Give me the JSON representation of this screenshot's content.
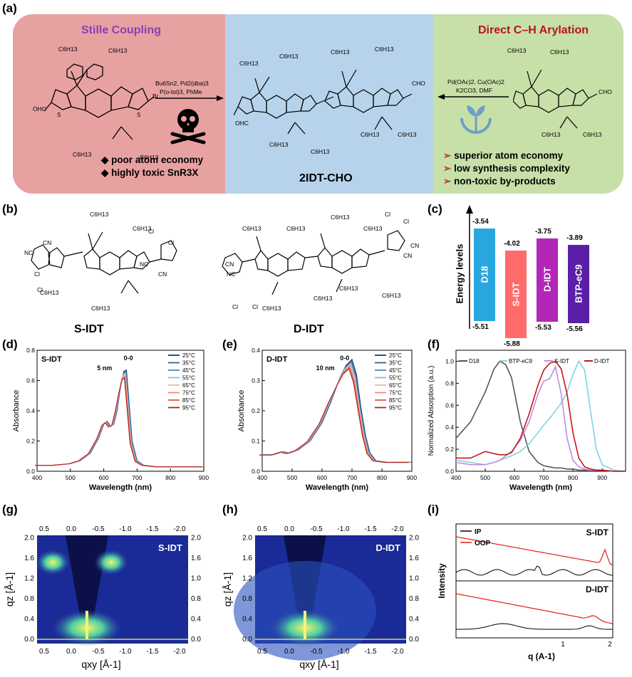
{
  "panel_labels": {
    "a": "(a)",
    "b": "(b)",
    "c": "(c)",
    "d": "(d)",
    "e": "(e)",
    "f": "(f)",
    "g": "(g)",
    "h": "(h)",
    "i": "(i)"
  },
  "scheme": {
    "left_title": "Stille Coupling",
    "left_reagents": [
      "Bu6Sn2, Pd2(dba)3",
      "P(o-tol)3, PhMe"
    ],
    "left_bullets": [
      "poor atom economy",
      "highly toxic SnR3X"
    ],
    "center_name": "2IDT-CHO",
    "right_title": "Direct C–H Arylation",
    "right_reagents": [
      "Pd(OAc)2, Cu(OAc)2",
      "K2CO3, DMF"
    ],
    "right_bullets": [
      "superior atom economy",
      "low synthesis complexity",
      "non-toxic by-products"
    ],
    "chem_labels": {
      "hexyl": "C6H13",
      "ohc": "OHC",
      "cho": "CHO",
      "br": "Br",
      "s": "S",
      "cl": "Cl",
      "nc": "NC",
      "cn": "CN",
      "o": "O"
    }
  },
  "molecules": {
    "left": "S-IDT",
    "right": "D-IDT"
  },
  "energy": {
    "ylabel": "Energy levels",
    "bars": [
      {
        "name": "D18",
        "lumo": "-3.54",
        "homo": "-5.51",
        "color": "#2aa6df"
      },
      {
        "name": "S-IDT",
        "lumo": "-4.02",
        "homo": "-5.88",
        "color": "#ff6b6b"
      },
      {
        "name": "D-IDT",
        "lumo": "-3.75",
        "homo": "-5.53",
        "color": "#b326b8"
      },
      {
        "name": "BTP-eC9",
        "lumo": "-3.89",
        "homo": "-5.56",
        "color": "#5a1fa6"
      }
    ]
  },
  "absorb_legend": [
    "25°C",
    "35°C",
    "45°C",
    "55°C",
    "65°C",
    "75°C",
    "85°C",
    "95°C"
  ],
  "absorb_colors": [
    "#1f3a6b",
    "#2f5f9a",
    "#4b86c0",
    "#8fb9e0",
    "#e8b8a6",
    "#f08a73",
    "#e35a48",
    "#b0211e"
  ],
  "chart_data": [
    {
      "type": "line",
      "title": "S-IDT",
      "xlabel": "Wavelength (nm)",
      "ylabel": "Absorbance",
      "xlim": [
        400,
        900
      ],
      "ylim": [
        0,
        0.8
      ],
      "xticks": [
        400,
        500,
        600,
        700,
        800,
        900
      ],
      "yticks": [
        0.0,
        0.2,
        0.4,
        0.6,
        0.8
      ],
      "annotations": [
        "0-0",
        "5 nm"
      ],
      "x": [
        400,
        450,
        500,
        530,
        560,
        585,
        600,
        610,
        620,
        630,
        640,
        650,
        660,
        668,
        675,
        685,
        700,
        720,
        760,
        820,
        900
      ],
      "series": [
        {
          "name": "25°C",
          "values": [
            0.04,
            0.04,
            0.05,
            0.07,
            0.12,
            0.22,
            0.31,
            0.33,
            0.3,
            0.31,
            0.4,
            0.55,
            0.66,
            0.67,
            0.48,
            0.2,
            0.07,
            0.04,
            0.03,
            0.03,
            0.03
          ]
        }
      ]
    },
    {
      "type": "line",
      "title": "D-IDT",
      "xlabel": "Wavelength (nm)",
      "ylabel": "Absorbance",
      "xlim": [
        400,
        900
      ],
      "ylim": [
        0,
        0.4
      ],
      "xticks": [
        400,
        500,
        600,
        700,
        800,
        900
      ],
      "yticks": [
        0.0,
        0.1,
        0.2,
        0.3,
        0.4
      ],
      "annotations": [
        "0-0",
        "10 nm"
      ],
      "x": [
        400,
        440,
        470,
        490,
        520,
        560,
        600,
        630,
        660,
        680,
        700,
        715,
        730,
        745,
        760,
        780,
        820,
        900
      ],
      "series": [
        {
          "name": "25°C",
          "values": [
            0.055,
            0.055,
            0.065,
            0.06,
            0.07,
            0.1,
            0.16,
            0.23,
            0.31,
            0.35,
            0.37,
            0.32,
            0.21,
            0.12,
            0.06,
            0.035,
            0.03,
            0.03
          ]
        }
      ]
    },
    {
      "type": "line",
      "xlabel": "Wavelength (nm)",
      "ylabel": "Normalized Absorption (a.u.)",
      "xlim": [
        400,
        980
      ],
      "ylim": [
        0,
        1.1
      ],
      "xticks": [
        400,
        500,
        600,
        700,
        800,
        900
      ],
      "yticks": [
        0.0,
        0.2,
        0.4,
        0.6,
        0.8,
        1.0
      ],
      "x": [
        400,
        450,
        500,
        530,
        550,
        570,
        590,
        620,
        650,
        680,
        700,
        720,
        740,
        760,
        780,
        800,
        820,
        840,
        860,
        880,
        900,
        940,
        980
      ],
      "series": [
        {
          "name": "D18",
          "color": "#555555",
          "values": [
            0.3,
            0.45,
            0.72,
            0.93,
            1.0,
            0.97,
            0.85,
            0.45,
            0.18,
            0.08,
            0.05,
            0.04,
            0.03,
            0.03,
            0.02,
            0.02,
            0.01,
            0.01,
            0.01,
            0.01,
            0.01,
            0.0,
            0.0
          ]
        },
        {
          "name": "BTP-eC9",
          "color": "#7fd4dc",
          "values": [
            0.1,
            0.08,
            0.06,
            0.08,
            0.1,
            0.12,
            0.14,
            0.18,
            0.25,
            0.35,
            0.42,
            0.48,
            0.55,
            0.62,
            0.72,
            0.88,
            1.0,
            0.92,
            0.55,
            0.2,
            0.06,
            0.01,
            0.0
          ]
        },
        {
          "name": "S-IDT",
          "color": "#c28be0",
          "values": [
            0.08,
            0.06,
            0.06,
            0.08,
            0.1,
            0.14,
            0.18,
            0.28,
            0.45,
            0.7,
            0.82,
            0.84,
            0.95,
            0.7,
            0.3,
            0.1,
            0.04,
            0.02,
            0.01,
            0.01,
            0.01,
            0.0,
            0.0
          ]
        },
        {
          "name": "D-IDT",
          "color": "#c4161c",
          "values": [
            0.12,
            0.12,
            0.18,
            0.16,
            0.15,
            0.15,
            0.17,
            0.3,
            0.52,
            0.78,
            0.92,
            0.98,
            1.0,
            0.93,
            0.7,
            0.35,
            0.12,
            0.04,
            0.02,
            0.01,
            0.01,
            0.0,
            0.0
          ]
        }
      ]
    },
    {
      "type": "heatmap",
      "title": "S-IDT",
      "xlabel": "qxy [Å-1]",
      "ylabel": "qz [Å-1]",
      "xticks": [
        "0.5",
        "0.0",
        "-0.5",
        "-1.0",
        "-1.5",
        "-2.0"
      ],
      "yticks": [
        "0.0",
        "0.4",
        "0.8",
        "1.2",
        "1.6",
        "2.0"
      ],
      "right_yticks": [
        "0.0",
        "0.4",
        "0.8",
        "1.0",
        "1.6",
        "2.0"
      ]
    },
    {
      "type": "heatmap",
      "title": "D-IDT",
      "xlabel": "qxy [Å-1]",
      "ylabel": "qz [Å-1]",
      "xticks": [
        "0.5",
        "0.0",
        "-0.5",
        "-1.0",
        "-1.5",
        "-2.0"
      ],
      "yticks": [
        "0.0",
        "0.4",
        "0.8",
        "1.2",
        "1.6",
        "2.0"
      ],
      "right_yticks": [
        "0.0",
        "0.4",
        "0.8",
        "1.0",
        "1.6",
        "2.0"
      ]
    },
    {
      "type": "line",
      "xlabel": "q (A-1)",
      "ylabel": "Intensity",
      "xticks": [
        "1",
        "2"
      ],
      "panels": [
        {
          "label": "S-IDT",
          "series": [
            {
              "name": "IP",
              "color": "#000000"
            },
            {
              "name": "OOP",
              "color": "#e0201a"
            }
          ]
        },
        {
          "label": "D-IDT",
          "series": [
            {
              "name": "IP",
              "color": "#000000"
            },
            {
              "name": "OOP",
              "color": "#e0201a"
            }
          ]
        }
      ]
    }
  ]
}
